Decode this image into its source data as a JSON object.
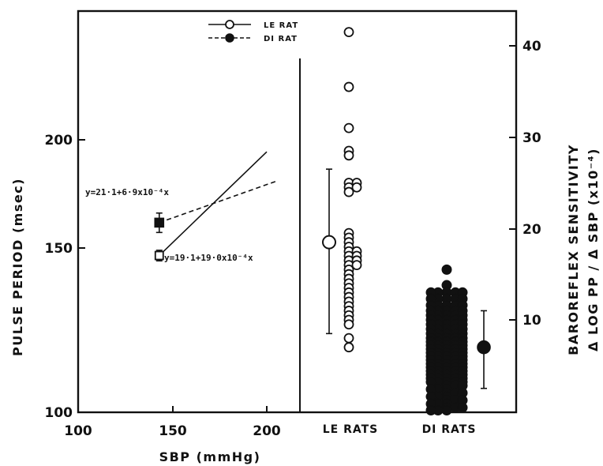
{
  "chart_data": [
    {
      "type": "line",
      "xlabel": "SBP (mmHg)",
      "ylabel": "PULSE PERIOD (msec)",
      "xlim": [
        100,
        220
      ],
      "ylim": [
        100,
        230
      ],
      "y_scale": "log",
      "x_ticks": [
        "100",
        "150",
        "200"
      ],
      "y_ticks": [
        "100",
        "150",
        "200"
      ],
      "legend": {
        "placement": "top",
        "entries": [
          "LE RAT",
          "DI RAT"
        ]
      },
      "series": [
        {
          "name": "LE RAT",
          "marker": "open-circle",
          "line_style": "solid",
          "mean": {
            "x": 143,
            "y": 149,
            "y_err": 2
          },
          "regression_line": [
            [
              143,
              149
            ],
            [
              200,
              194
            ]
          ],
          "equation": "y=19·1+19·0x10⁻⁴x"
        },
        {
          "name": "DI RAT",
          "marker": "filled-circle",
          "line_style": "dashed",
          "mean": {
            "x": 143,
            "y": 162,
            "y_err": 4
          },
          "regression_line": [
            [
              143,
              162
            ],
            [
              205,
              180
            ]
          ],
          "equation": "y=21·1+6·9x10⁻⁴x"
        }
      ]
    },
    {
      "type": "scatter",
      "categories": [
        "LE RATS",
        "DI RATS"
      ],
      "y2label_line1": "BAROREFLEX   SENSITIVITY",
      "y2label_line2": "Δ LOG PP / Δ SBP (x10⁻⁴)",
      "ylim": [
        0,
        44
      ],
      "y_ticks": [
        "10",
        "20",
        "30",
        "40"
      ],
      "series": [
        {
          "name": "LE RATS",
          "marker": "open-circle",
          "values": [
            41.5,
            35.5,
            31,
            28.5,
            28,
            25,
            25,
            24.5,
            24.5,
            24,
            19.5,
            19,
            18.5,
            18,
            17.5,
            17.5,
            17,
            17,
            16.5,
            16.5,
            16,
            16,
            15.5,
            15,
            14.5,
            14,
            13.5,
            13,
            12.5,
            12,
            11.5,
            11,
            10.5,
            10,
            9.5,
            8,
            7
          ],
          "mean": 18.5,
          "error_range": [
            8.5,
            26.5
          ]
        },
        {
          "name": "DI RATS",
          "marker": "filled-circle",
          "values": [
            15.5,
            13.8,
            13,
            12.3,
            11.6,
            11,
            10.5,
            10,
            9.5,
            9,
            8.5,
            8,
            7.6,
            7.2,
            6.8,
            6.4,
            6,
            5.6,
            5.2,
            4.8,
            4.4,
            4,
            3.6,
            3.2,
            2.8,
            2.4,
            2,
            1.6,
            1.2,
            0.8,
            0.4,
            0.1
          ],
          "mean": 7,
          "error_range": [
            2.5,
            11
          ]
        }
      ]
    }
  ]
}
